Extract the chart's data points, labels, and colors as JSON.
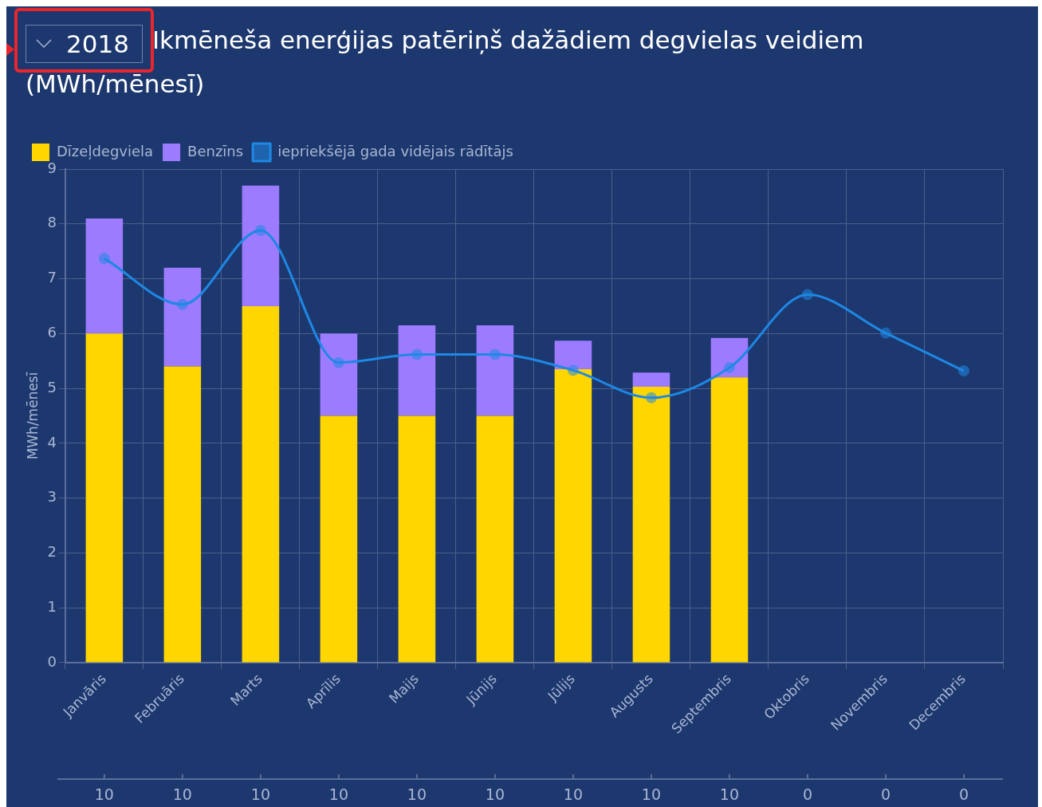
{
  "chart_data": {
    "type": "bar",
    "title": "Ikmēneša enerģijas patēriņš dažādiem degvielas veidiem (MWh/mēnesī)",
    "ylabel": "MWh/mēnesī",
    "categories": [
      "Janvāris",
      "Februāris",
      "Marts",
      "Aprīlis",
      "Maijs",
      "Jūnijs",
      "Jūlijs",
      "Augusts",
      "Septembris",
      "Oktobris",
      "Novembris",
      "Decembris"
    ],
    "series": [
      {
        "name": "Dīzeļdegviela",
        "color": "#ffd600",
        "values": [
          6.0,
          5.4,
          6.5,
          4.5,
          4.5,
          4.5,
          5.35,
          5.03,
          5.2,
          null,
          null,
          null
        ]
      },
      {
        "name": "Benzīns",
        "color": "#9d7bff",
        "values": [
          2.1,
          1.8,
          2.2,
          1.5,
          1.65,
          1.65,
          0.52,
          0.26,
          0.72,
          null,
          null,
          null
        ]
      },
      {
        "name": "iepriekšējā gada vidējais rādītājs",
        "type": "line",
        "color": "#1e88e5",
        "marker": "circle",
        "values": [
          7.37,
          6.53,
          7.88,
          5.47,
          5.62,
          5.62,
          5.33,
          4.83,
          5.38,
          6.71,
          6.01,
          5.32
        ]
      }
    ],
    "stacked": true,
    "ylim": [
      0,
      9
    ],
    "yticks": [
      0,
      1,
      2,
      3,
      4,
      5,
      6,
      7,
      8,
      9
    ],
    "grid": true,
    "legend": "top left",
    "annotations": [
      "2018",
      {
        "text": "10",
        "x": "Janvāris"
      },
      {
        "text": "10",
        "x": "Februāris"
      },
      {
        "text": "10",
        "x": "Marts"
      },
      {
        "text": "10",
        "x": "Aprīlis"
      },
      {
        "text": "10",
        "x": "Maijs"
      },
      {
        "text": "10",
        "x": "Jūnijs"
      },
      {
        "text": "10",
        "x": "Jūlijs"
      },
      {
        "text": "10",
        "x": "Augusts"
      },
      {
        "text": "10",
        "x": "Septembris"
      },
      {
        "text": "0",
        "x": "Oktobris"
      },
      {
        "text": "0",
        "x": "Novembris"
      },
      {
        "text": "0",
        "x": "Decembris"
      }
    ]
  }
}
